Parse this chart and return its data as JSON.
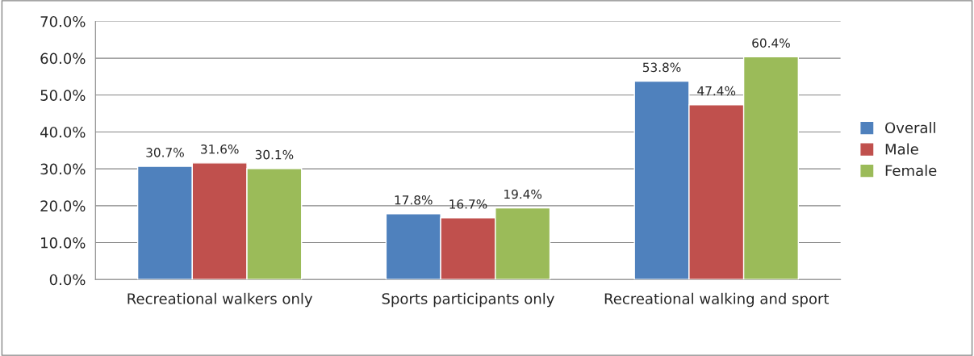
{
  "chart_data": {
    "type": "bar",
    "categories": [
      "Recreational walkers only",
      "Sports participants only",
      "Recreational walking and sport"
    ],
    "series": [
      {
        "name": "Overall",
        "color": "#4f81bd",
        "values": [
          30.7,
          17.8,
          53.8
        ],
        "value_labels": [
          "30.7%",
          "17.8%",
          "53.8%"
        ]
      },
      {
        "name": "Male",
        "color": "#c0504d",
        "values": [
          31.6,
          16.7,
          47.4
        ],
        "value_labels": [
          "31.6%",
          "16.7%",
          "47.4%"
        ]
      },
      {
        "name": "Female",
        "color": "#9bbb59",
        "values": [
          30.1,
          19.4,
          60.4
        ],
        "value_labels": [
          "30.1%",
          "19.4%",
          "60.4%"
        ]
      }
    ],
    "ylim": [
      0,
      70
    ],
    "yticks": [
      {
        "value": 0,
        "label": "0.0%"
      },
      {
        "value": 10,
        "label": "10.0%"
      },
      {
        "value": 20,
        "label": "20.0%"
      },
      {
        "value": 30,
        "label": "30.0%"
      },
      {
        "value": 40,
        "label": "40.0%"
      },
      {
        "value": 50,
        "label": "50.0%"
      },
      {
        "value": 60,
        "label": "60.0%"
      },
      {
        "value": 70,
        "label": "70.0%"
      }
    ],
    "grid": "y",
    "legend": "right"
  }
}
